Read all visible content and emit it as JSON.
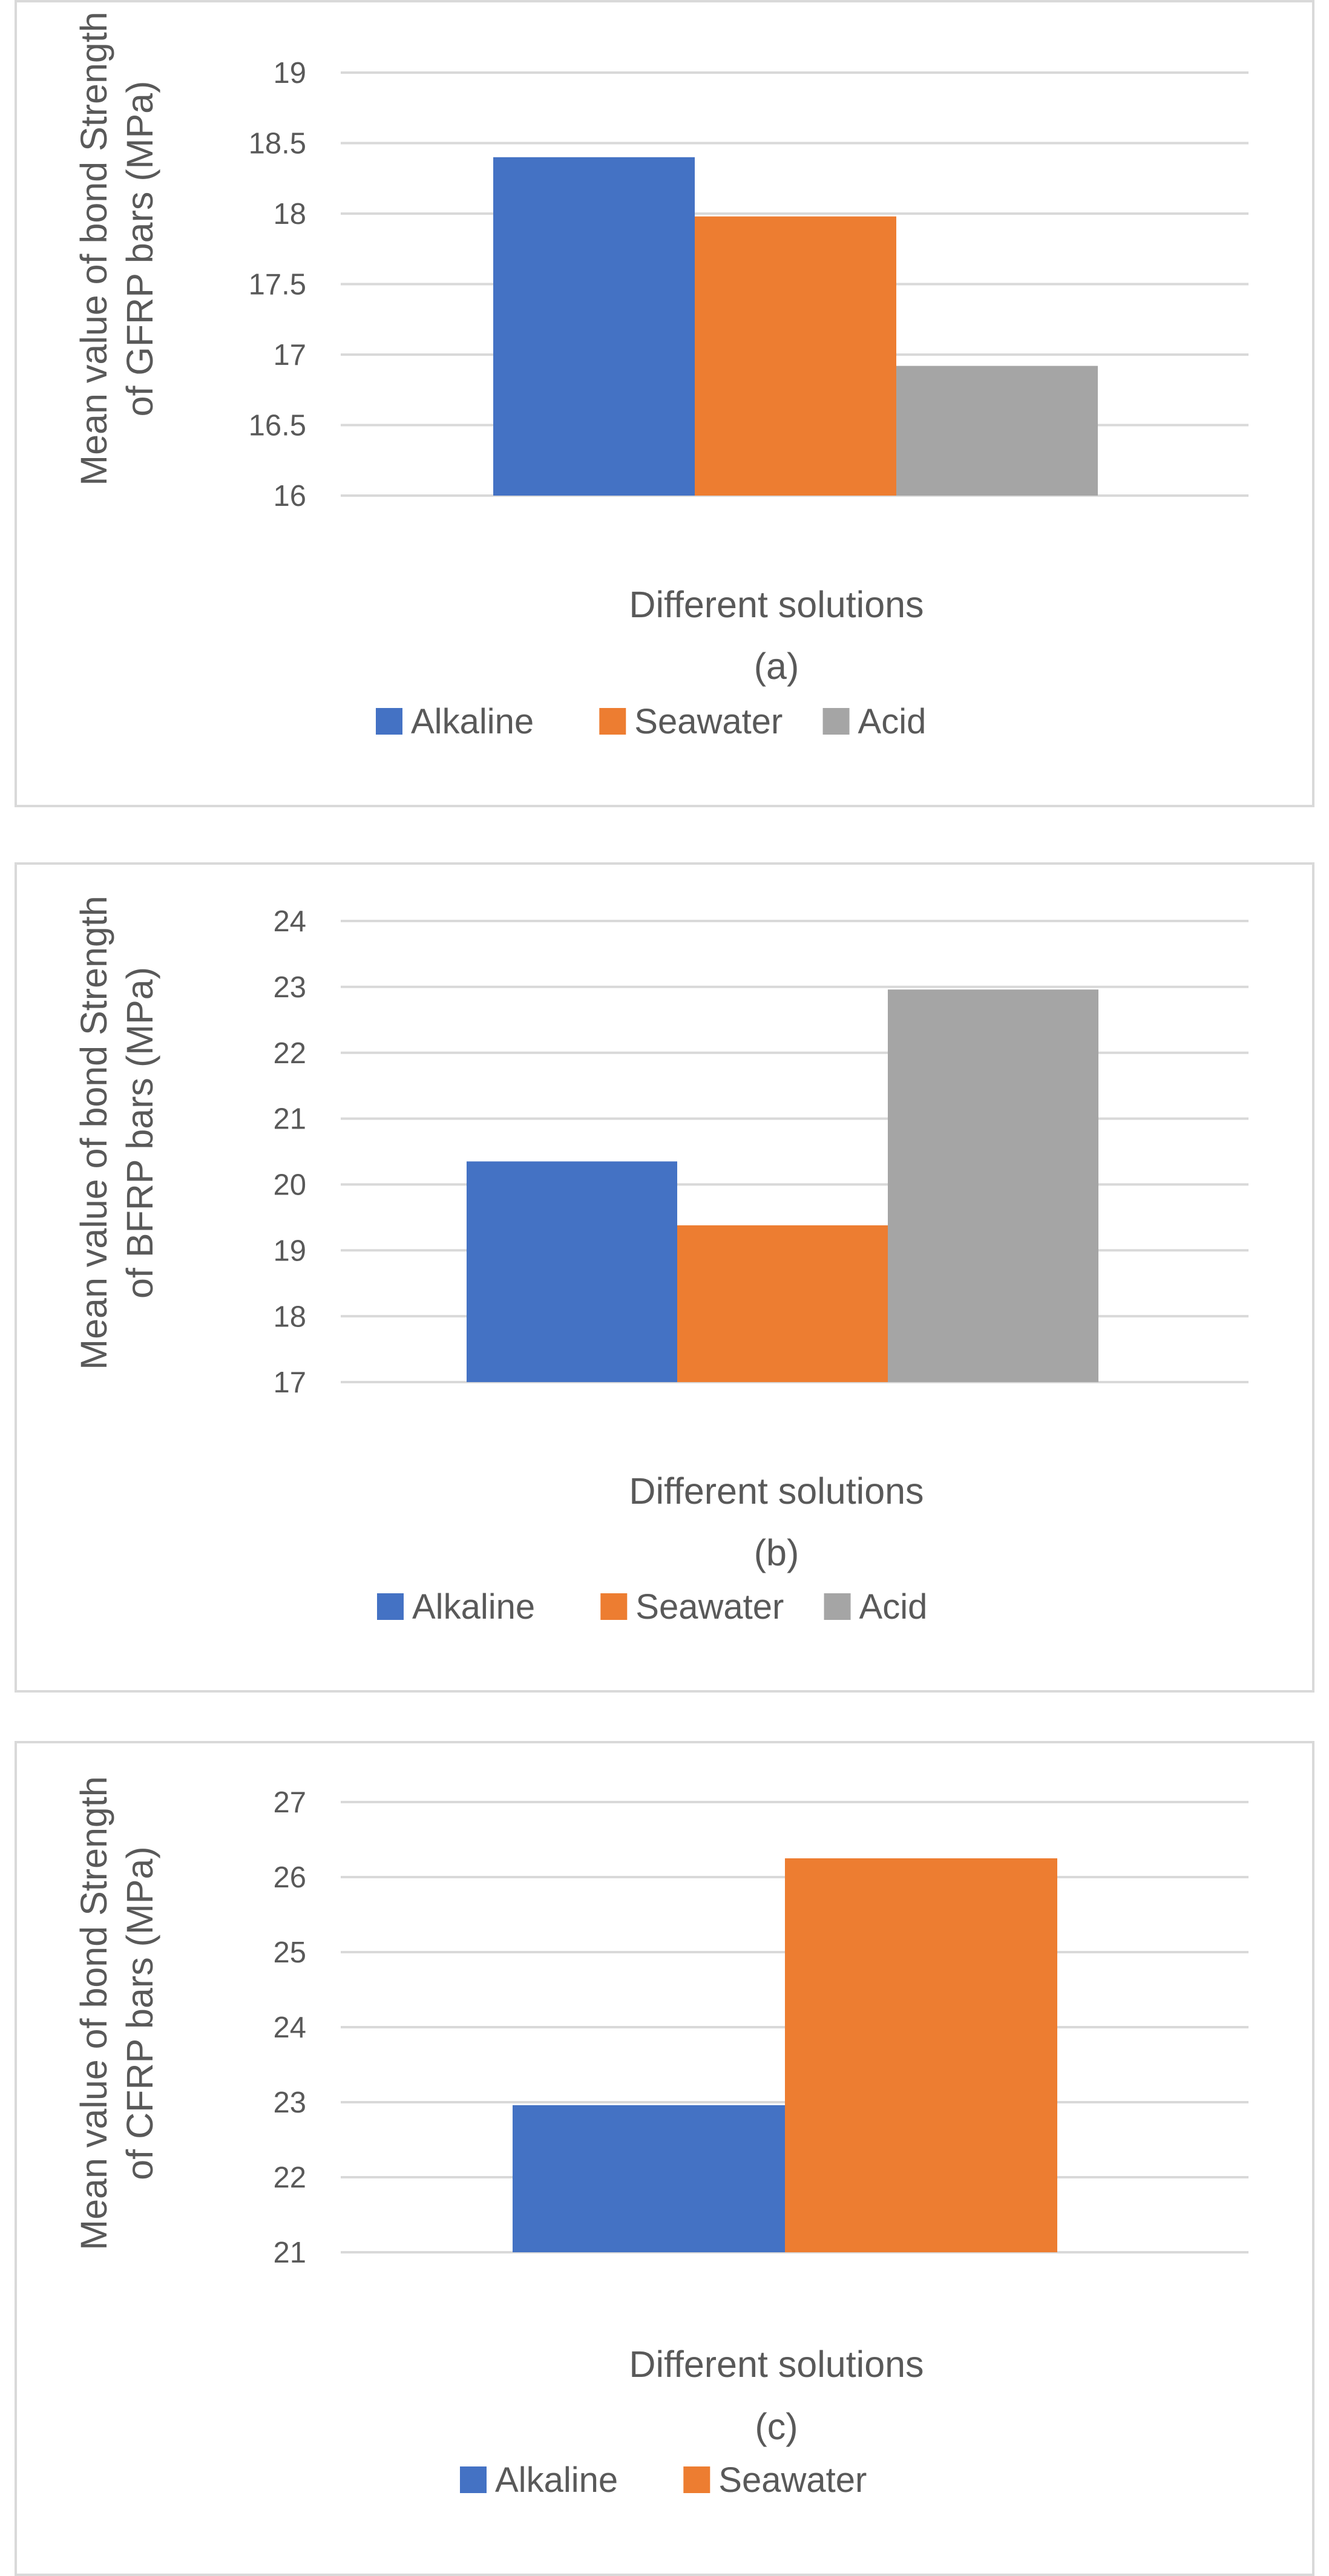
{
  "chart_data": [
    {
      "type": "bar",
      "panel_label": "(a)",
      "xlabel": "Different solutions",
      "ylabel": [
        "Mean value of bond Strength",
        "of GFRP bars (MPa)"
      ],
      "ylim": [
        16,
        19
      ],
      "ytick_step": 0.5,
      "ytick_labels": [
        "16",
        "16.5",
        "17",
        "17.5",
        "18",
        "18.5",
        "19"
      ],
      "categories": [
        ""
      ],
      "series": [
        {
          "name": "Alkaline",
          "values": [
            18.4
          ],
          "color": "#4472c4"
        },
        {
          "name": "Seawater",
          "values": [
            17.98
          ],
          "color": "#ed7d31"
        },
        {
          "name": "Acid",
          "values": [
            16.92
          ],
          "color": "#a5a5a5"
        }
      ],
      "grid": true,
      "legend": "bottom"
    },
    {
      "type": "bar",
      "panel_label": "(b)",
      "xlabel": "Different solutions",
      "ylabel": [
        "Mean value of bond Strength",
        "of BFRP bars (MPa)"
      ],
      "ylim": [
        17,
        24
      ],
      "ytick_step": 1,
      "ytick_labels": [
        "17",
        "18",
        "19",
        "20",
        "21",
        "22",
        "23",
        "24"
      ],
      "categories": [
        ""
      ],
      "series": [
        {
          "name": "Alkaline",
          "values": [
            20.35
          ],
          "color": "#4472c4"
        },
        {
          "name": "Seawater",
          "values": [
            19.38
          ],
          "color": "#ed7d31"
        },
        {
          "name": "Acid",
          "values": [
            22.96
          ],
          "color": "#a5a5a5"
        }
      ],
      "grid": true,
      "legend": "bottom"
    },
    {
      "type": "bar",
      "panel_label": "(c)",
      "xlabel": "Different solutions",
      "ylabel": [
        "Mean value of bond Strength",
        "of CFRP bars (MPa)"
      ],
      "ylim": [
        21,
        27
      ],
      "ytick_step": 1,
      "ytick_labels": [
        "21",
        "22",
        "23",
        "24",
        "25",
        "26",
        "27"
      ],
      "categories": [
        ""
      ],
      "series": [
        {
          "name": "Alkaline",
          "values": [
            22.96
          ],
          "color": "#4472c4"
        },
        {
          "name": "Seawater",
          "values": [
            26.25
          ],
          "color": "#ed7d31"
        }
      ],
      "grid": true,
      "legend": "bottom"
    }
  ]
}
